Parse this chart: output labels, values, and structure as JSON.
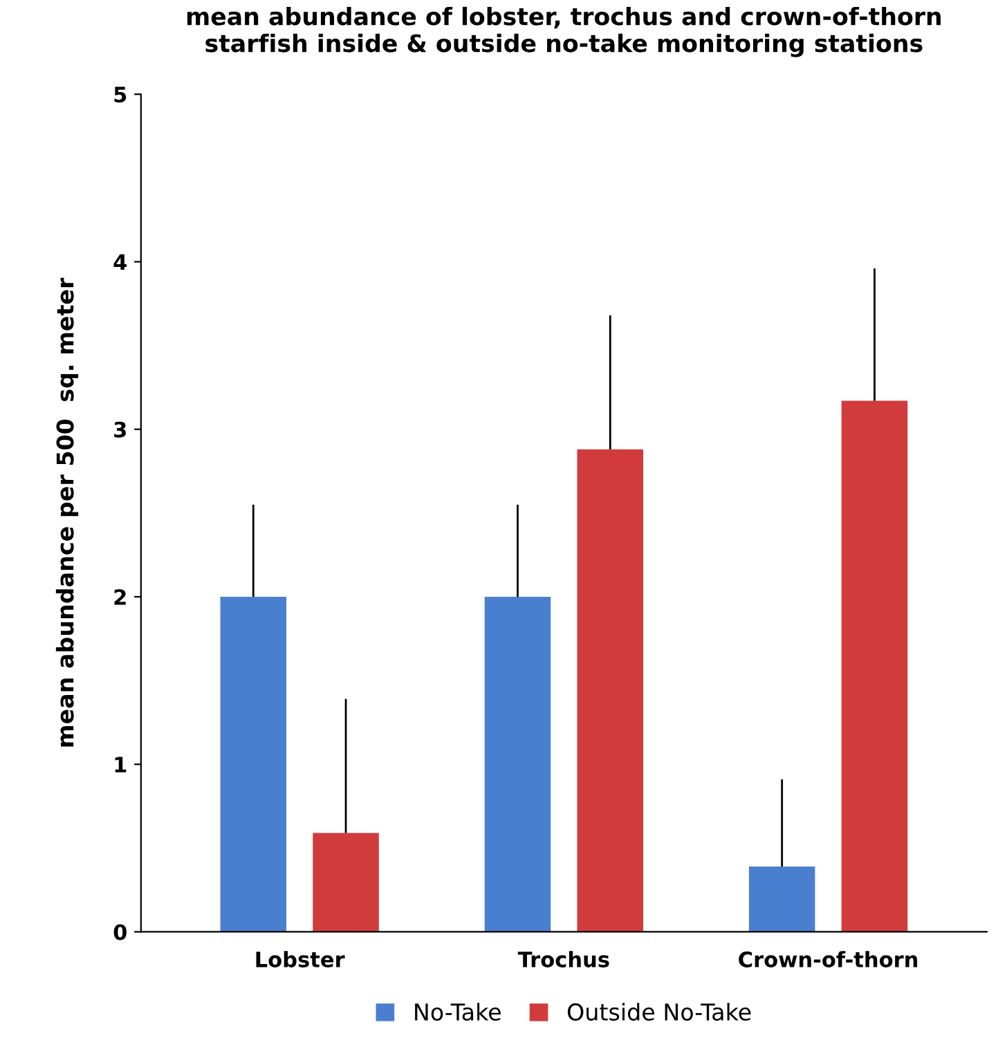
{
  "chart_data": {
    "type": "bar",
    "title": "mean abundance of lobster, trochus and crown-of-thorn\nstarfish inside & outside no-take monitoring stations",
    "ylabel": "mean abundance per 500  sq. meter",
    "categories": [
      "Lobster",
      "Trochus",
      "Crown-of-thorn"
    ],
    "series": [
      {
        "name": "No-Take",
        "color": "#4a7fd0",
        "values": [
          2.0,
          2.0,
          0.39
        ],
        "errors": [
          [
            2.0,
            2.55
          ],
          [
            2.0,
            2.55
          ],
          [
            0.39,
            0.91
          ]
        ]
      },
      {
        "name": "Outside No-Take",
        "color": "#d23b3b",
        "values": [
          0.59,
          2.88,
          3.17
        ],
        "errors": [
          [
            0.59,
            1.39
          ],
          [
            2.88,
            3.68
          ],
          [
            3.17,
            3.96
          ]
        ]
      }
    ],
    "ylim": [
      0,
      5
    ],
    "yticks": [
      0,
      1,
      2,
      3,
      4,
      5
    ],
    "grid": false,
    "legend": "bottom"
  }
}
